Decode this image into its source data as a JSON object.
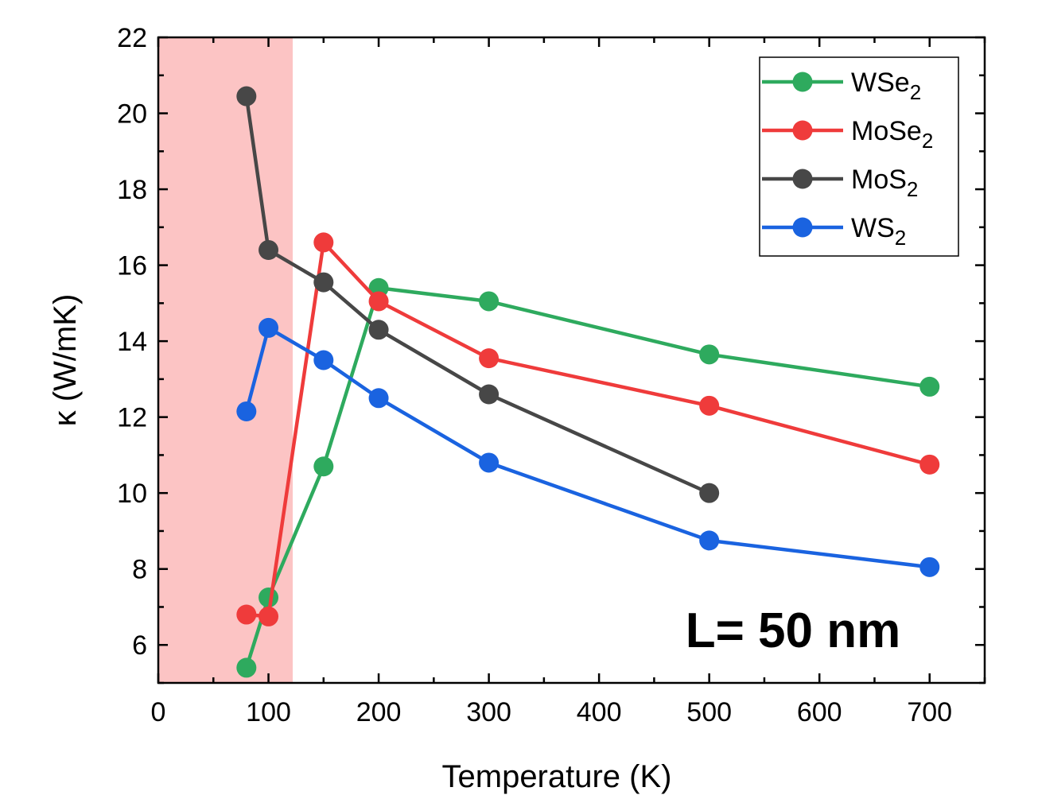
{
  "chart_data": {
    "type": "line",
    "xlabel": "Temperature (K)",
    "ylabel": "κ (W/mK)",
    "xlim": [
      0,
      750
    ],
    "ylim": [
      5,
      22
    ],
    "xticks": [
      0,
      100,
      200,
      300,
      400,
      500,
      600,
      700
    ],
    "yticks": [
      6,
      8,
      10,
      12,
      14,
      16,
      18,
      20,
      22
    ],
    "annotation": "L= 50 nm",
    "shaded_region": {
      "x_range": [
        0,
        122
      ],
      "color": "#fcc4c4"
    },
    "legend_position": "top-right",
    "series": [
      {
        "name": "WSe",
        "subscript": "2",
        "color": "#2eaa5e",
        "x": [
          80,
          100,
          150,
          200,
          300,
          500,
          700
        ],
        "y": [
          5.4,
          7.25,
          10.7,
          15.4,
          15.05,
          13.65,
          12.8
        ]
      },
      {
        "name": "MoSe",
        "subscript": "2",
        "color": "#ef3b3b",
        "x": [
          80,
          100,
          150,
          200,
          300,
          500,
          700
        ],
        "y": [
          6.8,
          6.75,
          16.6,
          15.05,
          13.55,
          12.3,
          10.75
        ]
      },
      {
        "name": "MoS",
        "subscript": "2",
        "color": "#474747",
        "x": [
          80,
          100,
          150,
          200,
          300,
          500
        ],
        "y": [
          20.45,
          16.4,
          15.55,
          14.3,
          12.6,
          10.0
        ]
      },
      {
        "name": "WS",
        "subscript": "2",
        "color": "#1a63e0",
        "x": [
          80,
          100,
          150,
          200,
          300,
          500,
          700
        ],
        "y": [
          12.15,
          14.35,
          13.5,
          12.5,
          10.8,
          8.75,
          8.05
        ]
      }
    ]
  }
}
